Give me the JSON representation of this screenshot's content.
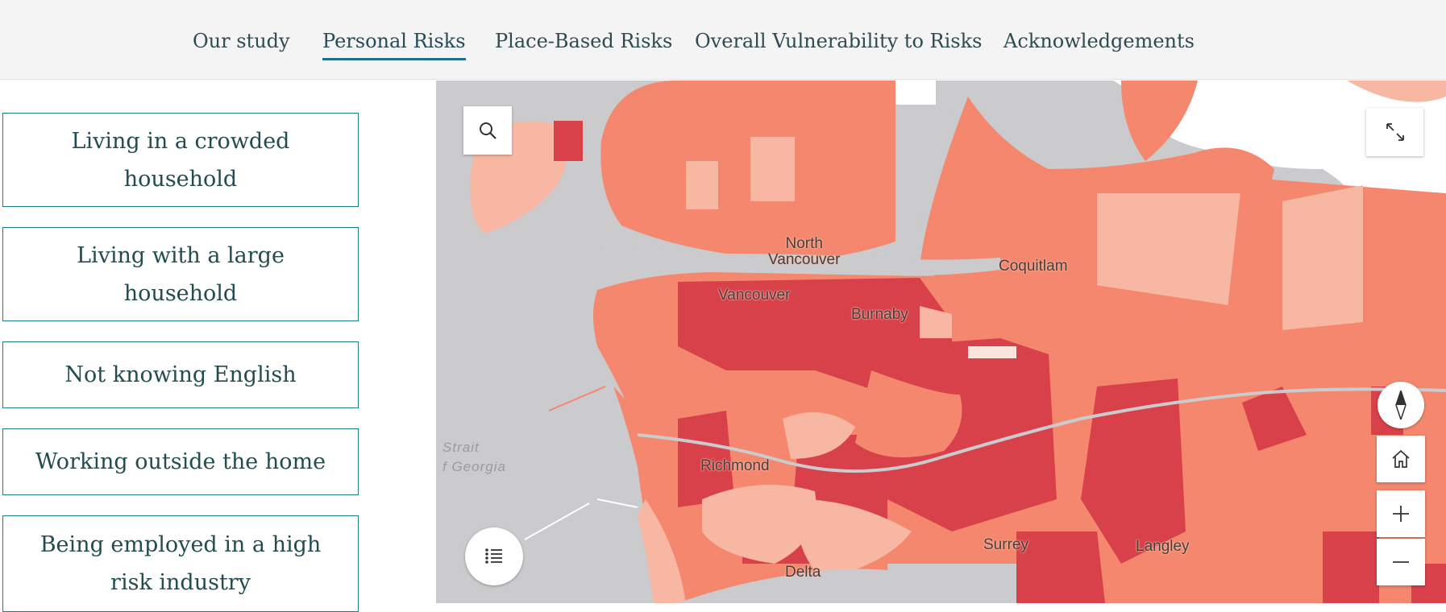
{
  "nav": {
    "items": [
      {
        "label": "Our study"
      },
      {
        "label": "Personal Risks"
      },
      {
        "label": "Place-Based Risks"
      },
      {
        "label": "Overall Vulnerability to Risks"
      },
      {
        "label": "Acknowledgements"
      }
    ],
    "active_index": 1
  },
  "risk_buttons": [
    {
      "label": "Living in a crowded household"
    },
    {
      "label": "Living with a large household"
    },
    {
      "label": "Not knowing English"
    },
    {
      "label": "Working outside the home"
    },
    {
      "label": "Being employed in a high risk industry"
    }
  ],
  "map": {
    "cities": [
      {
        "line1": "North",
        "line2": "Vancouver"
      },
      {
        "name": "Vancouver"
      },
      {
        "name": "Burnaby"
      },
      {
        "name": "Coquitlam"
      },
      {
        "name": "Richmond"
      },
      {
        "name": "Surrey"
      },
      {
        "name": "Langley"
      },
      {
        "name": "Delta"
      }
    ],
    "water_label": {
      "line1": "Strait",
      "line2": "f Georgia"
    },
    "controls": {
      "search": "search-icon",
      "fullscreen": "expand-icon",
      "compass": "compass-icon",
      "home": "home-icon",
      "zoom_in": "plus-icon",
      "zoom_out": "minus-icon",
      "legend": "list-icon"
    },
    "colors": {
      "water": "#cbcbce",
      "land_plain": "#ffffff",
      "low": "#f7b7a2",
      "medium": "#f4876d",
      "high": "#d8414a"
    }
  }
}
